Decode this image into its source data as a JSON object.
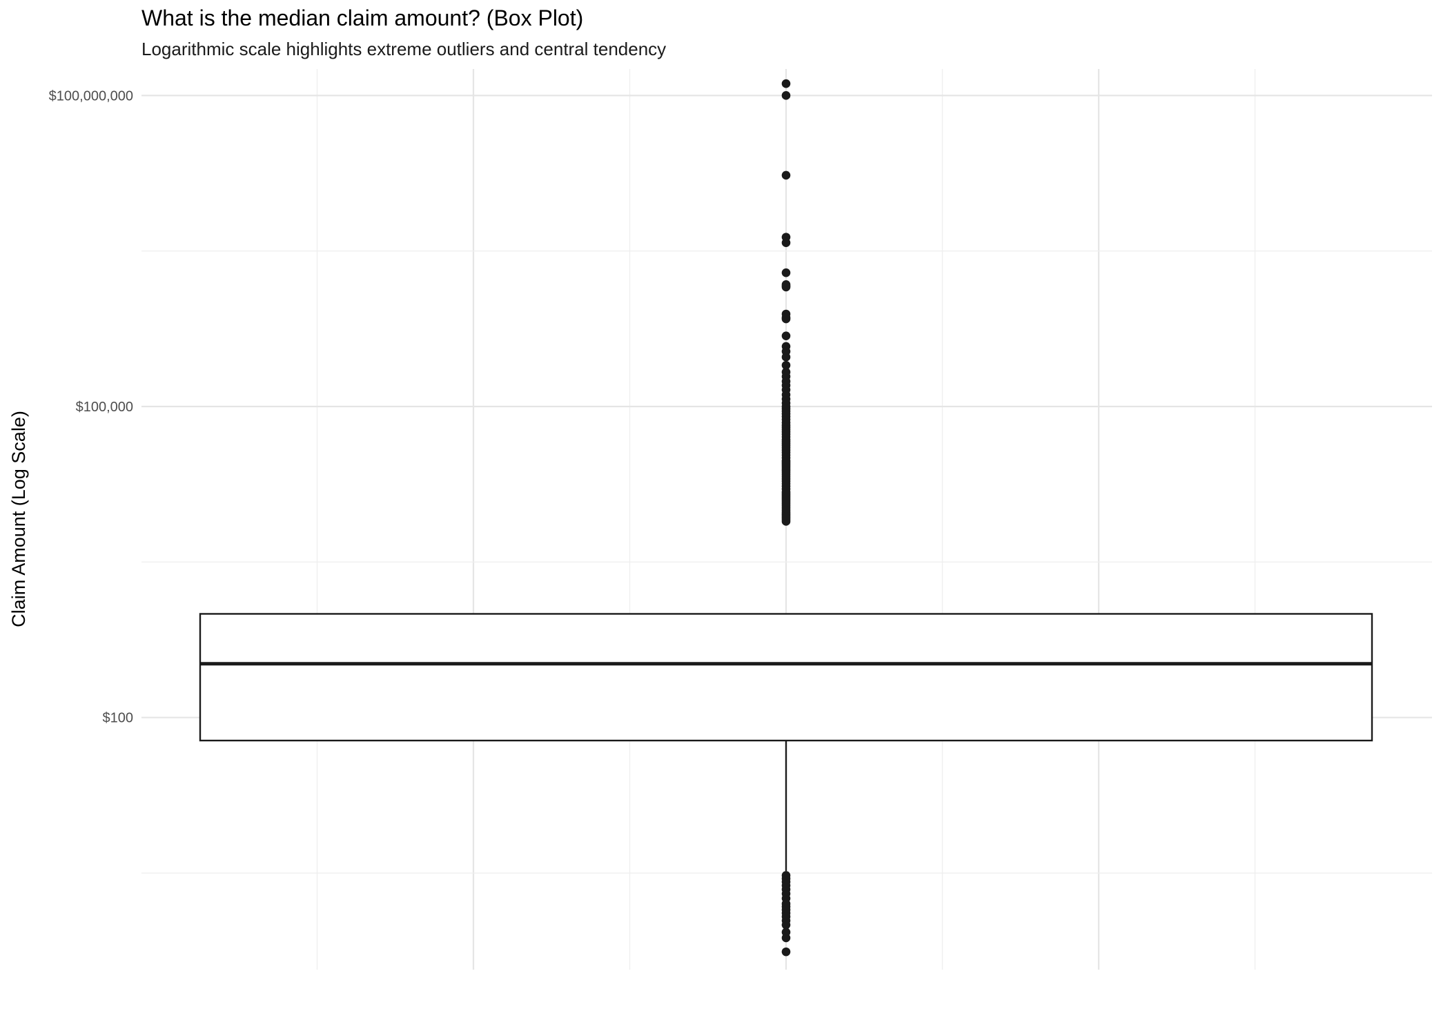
{
  "chart_data": {
    "type": "boxplot",
    "title": "What is the median claim amount? (Box Plot)",
    "subtitle": "Logarithmic scale highlights extreme outliers and central tendency",
    "xlabel": "",
    "ylabel": "Claim Amount (Log Scale)",
    "y_scale": "log10",
    "ylim": [
      0.37,
      180000000
    ],
    "y_ticks": [
      {
        "value": 100,
        "label": "$100"
      },
      {
        "value": 100000,
        "label": "$100,000"
      },
      {
        "value": 100000000,
        "label": "$100,000,000"
      }
    ],
    "grid": true,
    "box": {
      "q1": 60,
      "median": 330,
      "q3": 1000,
      "whisker_low": 3.3,
      "whisker_high": 1000
    },
    "outliers": [
      130000000,
      100000000,
      17000000,
      4300000,
      3800000,
      1950000,
      1500000,
      1420000,
      1450000,
      780000,
      720000,
      700000,
      480000,
      380000,
      340000,
      300000,
      250000,
      215000,
      195000,
      175000,
      160000,
      145000,
      130000,
      118000,
      108000,
      100000,
      95000,
      90000,
      85000,
      80000,
      75000,
      70000,
      66000,
      63000,
      60000,
      57000,
      54000,
      51000,
      48000,
      46000,
      44000,
      42000,
      40000,
      38000,
      36000,
      34000,
      32000,
      30000,
      29000,
      28000,
      27000,
      26000,
      25000,
      24000,
      23000,
      22000,
      21000,
      20000,
      19000,
      18000,
      17000,
      16000,
      15000,
      14500,
      14000,
      13500,
      13000,
      12500,
      12000,
      11500,
      11000,
      10500,
      10000,
      9600,
      9300,
      9000,
      8700,
      8400,
      8100,
      7800,
      3.0,
      2.8,
      2.6,
      2.4,
      2.2,
      2.0,
      1.8,
      1.6,
      1.5,
      1.4,
      1.3,
      1.2,
      1.1,
      1.0,
      0.85,
      0.75,
      0.55
    ]
  }
}
